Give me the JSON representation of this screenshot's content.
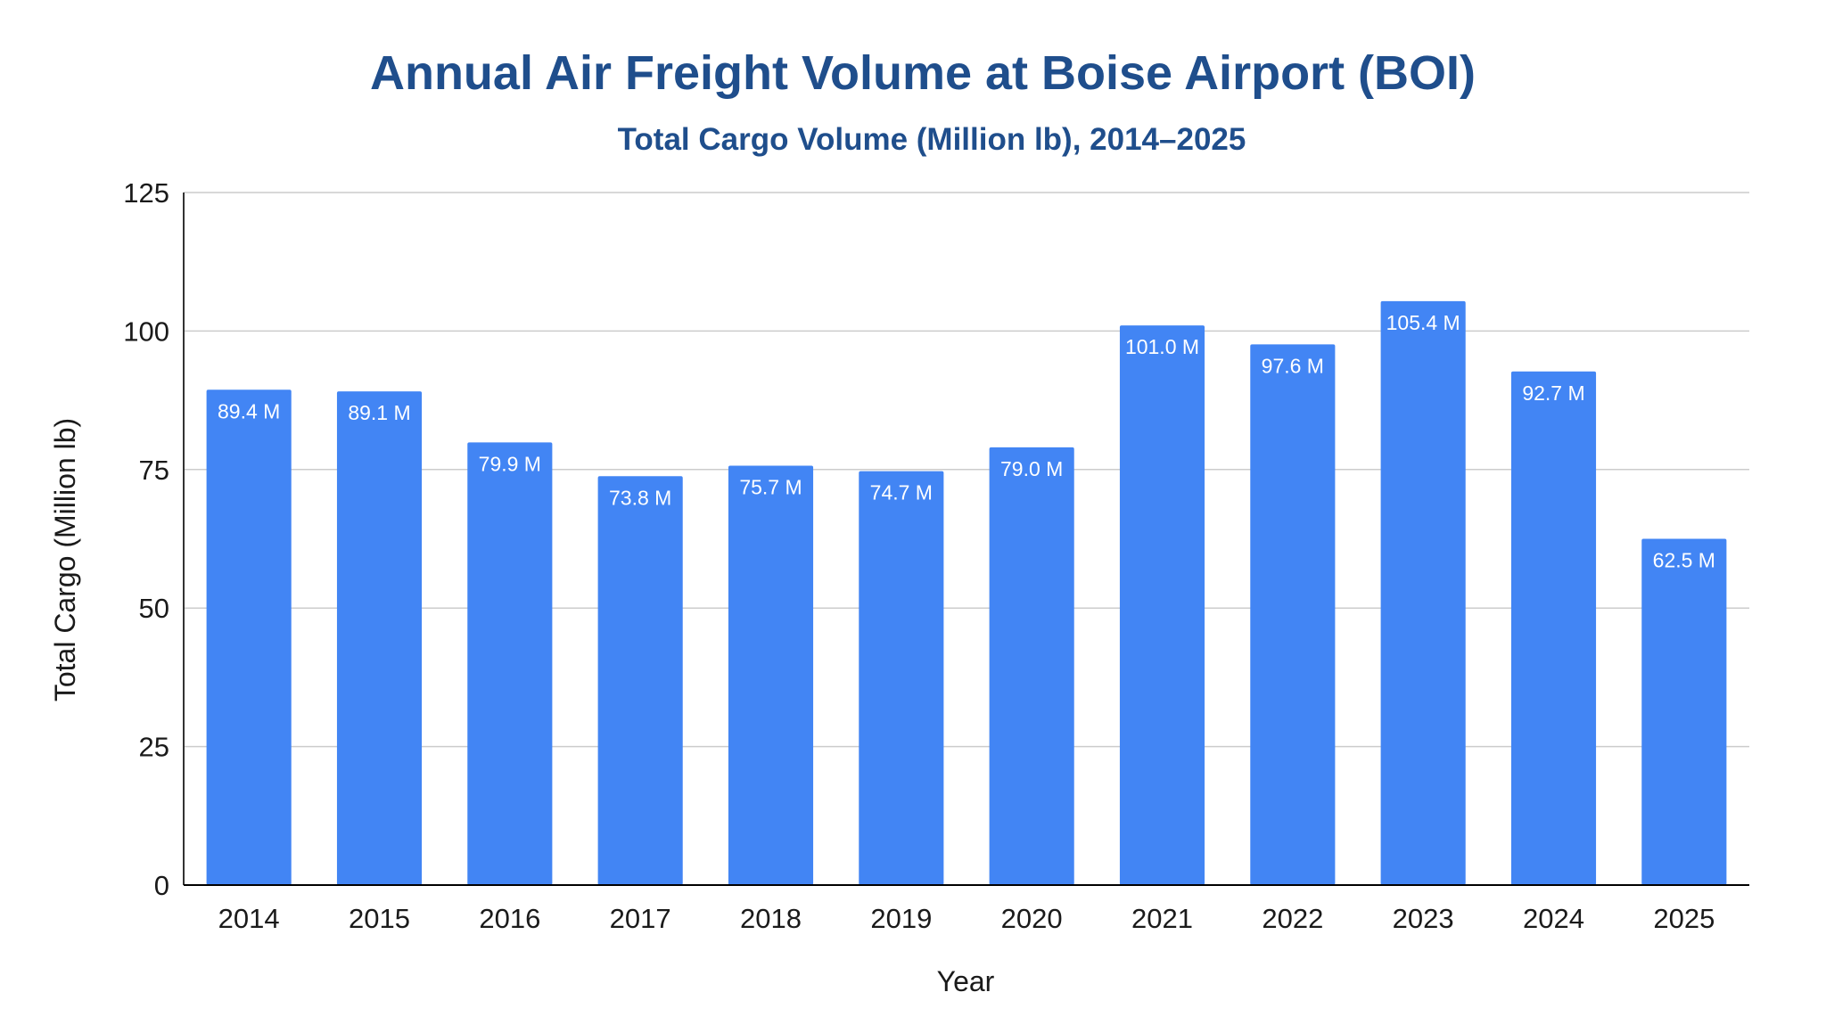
{
  "colors": {
    "title": "#1f4e8c",
    "bar": "#4285f4",
    "gridline": "#cccccc",
    "axis": "#333333",
    "data_label": "#ffffff"
  },
  "chart_data": {
    "type": "bar",
    "title": "Annual Air Freight Volume at Boise Airport (BOI)",
    "subtitle": "Total Cargo Volume (Million lb), 2014–2025",
    "xlabel": "Year",
    "ylabel": "Total Cargo (Million lb)",
    "ylim": [
      0,
      125
    ],
    "yticks": [
      0,
      25,
      50,
      75,
      100,
      125
    ],
    "grid": true,
    "legend": "none",
    "categories": [
      "2014",
      "2015",
      "2016",
      "2017",
      "2018",
      "2019",
      "2020",
      "2021",
      "2022",
      "2023",
      "2024",
      "2025"
    ],
    "values": [
      89.4,
      89.1,
      79.9,
      73.8,
      75.7,
      74.7,
      79.0,
      101.0,
      97.6,
      105.4,
      92.7,
      62.5
    ],
    "data_labels": [
      "89.4 M",
      "89.1 M",
      "79.9 M",
      "73.8 M",
      "75.7 M",
      "74.7 M",
      "79.0 M",
      "101.0 M",
      "97.6 M",
      "105.4 M",
      "92.7 M",
      "62.5 M"
    ]
  }
}
